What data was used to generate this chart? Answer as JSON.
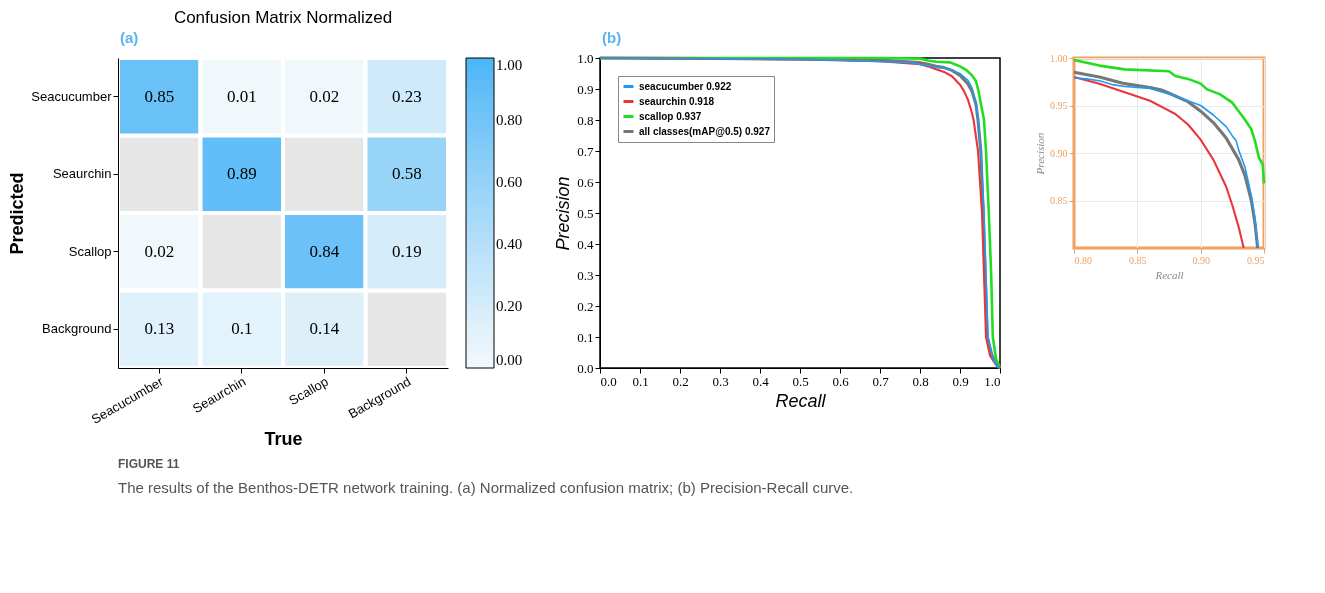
{
  "chart_data": [
    {
      "type": "heatmap",
      "title": "Confusion Matrix Normalized",
      "xlabel": "True",
      "ylabel": "Predicted",
      "categories": [
        "Seacucumber",
        "Seaurchin",
        "Scallop",
        "Background"
      ],
      "y_categories": [
        "Seacucumber",
        "Seaurchin",
        "Scallop",
        "Background"
      ],
      "cells": [
        [
          0.85,
          0.01,
          0.02,
          0.23
        ],
        [
          null,
          0.89,
          null,
          0.58
        ],
        [
          0.02,
          null,
          0.84,
          0.19
        ],
        [
          0.13,
          0.1,
          0.14,
          null
        ]
      ],
      "clim": [
        0,
        1
      ],
      "cticks": [
        {
          "value": 0,
          "label": "0.00"
        },
        {
          "value": 0.2,
          "label": "0.20"
        },
        {
          "value": 0.4,
          "label": "0.40"
        },
        {
          "value": 0.6,
          "label": "0.60"
        },
        {
          "value": 0.8,
          "label": "0.80"
        },
        {
          "value": 1,
          "label": "1.00"
        }
      ],
      "data_labels": true,
      "annotations": [
        "(a)",
        "FIGURE 11",
        "The results of the Benthos-DETR network training. (a) Normalized confusion matrix; (b) Precision-Recall curve."
      ]
    },
    {
      "type": "line",
      "xlabel": "Recall",
      "ylabel": "Precision",
      "legend": "top left",
      "grid": false,
      "xlim": [
        0,
        1
      ],
      "ylim": [
        0,
        1
      ],
      "xticks": [
        {
          "value": 0,
          "label": "0.0"
        },
        0.1,
        0.2,
        0.3,
        0.4,
        0.5,
        0.6,
        0.7,
        0.8,
        0.9,
        {
          "value": 1,
          "label": "1.0"
        }
      ],
      "yticks": [
        {
          "value": 0,
          "label": "0.0"
        },
        0.1,
        0.2,
        0.3,
        0.4,
        0.5,
        0.6,
        0.7,
        0.8,
        0.9,
        {
          "value": 1,
          "label": "1.0"
        }
      ],
      "annotations": [
        "(b)"
      ],
      "series": [
        {
          "name": "seacucumber 0.922",
          "color": "#1e9bf0",
          "x": [
            0,
            0.3,
            0.6,
            0.78,
            0.8,
            0.82,
            0.84,
            0.86,
            0.88,
            0.9,
            0.92,
            0.93,
            0.94,
            0.945,
            0.952,
            0.96,
            0.965,
            0.97,
            0.98,
            0.99,
            1.0
          ],
          "values": [
            1.0,
            0.998,
            0.993,
            0.985,
            0.979,
            0.976,
            0.97,
            0.968,
            0.96,
            0.95,
            0.928,
            0.903,
            0.855,
            0.8,
            0.7,
            0.5,
            0.3,
            0.1,
            0.04,
            0.01,
            0
          ]
        },
        {
          "name": "seaurchin 0.918",
          "color": "#e8363a",
          "x": [
            0,
            0.5,
            0.7,
            0.8,
            0.82,
            0.84,
            0.86,
            0.88,
            0.9,
            0.91,
            0.92,
            0.93,
            0.934,
            0.945,
            0.955,
            0.96,
            0.965,
            0.975,
            0.99,
            1.0
          ],
          "values": [
            1.0,
            0.995,
            0.99,
            0.98,
            0.973,
            0.964,
            0.955,
            0.941,
            0.914,
            0.893,
            0.865,
            0.822,
            0.8,
            0.7,
            0.5,
            0.3,
            0.1,
            0.04,
            0.01,
            0
          ]
        },
        {
          "name": "scallop 0.937",
          "color": "#22dd22",
          "x": [
            0,
            0.7,
            0.8,
            0.82,
            0.84,
            0.875,
            0.89,
            0.9,
            0.915,
            0.93,
            0.94,
            0.946,
            0.95,
            0.96,
            0.965,
            0.972,
            0.978,
            0.982,
            0.99,
            1.0
          ],
          "values": [
            1.0,
            1.0,
            0.998,
            0.992,
            0.988,
            0.986,
            0.978,
            0.973,
            0.962,
            0.944,
            0.925,
            0.895,
            0.868,
            0.8,
            0.7,
            0.5,
            0.3,
            0.1,
            0.03,
            0
          ]
        },
        {
          "name": "all classes(mAP@0.5) 0.927",
          "color": "#777777",
          "x": [
            0,
            0.5,
            0.7,
            0.8,
            0.82,
            0.84,
            0.86,
            0.88,
            0.9,
            0.92,
            0.93,
            0.94,
            0.945,
            0.952,
            0.958,
            0.963,
            0.968,
            0.98,
            0.995,
            1.0
          ],
          "values": [
            1.0,
            0.997,
            0.993,
            0.985,
            0.98,
            0.973,
            0.969,
            0.96,
            0.944,
            0.916,
            0.893,
            0.85,
            0.8,
            0.7,
            0.5,
            0.3,
            0.1,
            0.04,
            0.005,
            0
          ]
        }
      ]
    },
    {
      "type": "line",
      "xlabel": "Recall",
      "ylabel": "Precision",
      "grid": true,
      "xlim": [
        0.8,
        0.95
      ],
      "ylim": [
        0.8,
        1.0
      ],
      "xticks": [
        {
          "value": 0.8,
          "label": "0.80"
        },
        {
          "value": 0.85,
          "label": "0.85"
        },
        {
          "value": 0.9,
          "label": "0.90"
        },
        {
          "value": 0.95,
          "label": "0.95"
        }
      ],
      "yticks": [
        {
          "value": 0.85,
          "label": "0.85"
        },
        {
          "value": 0.9,
          "label": "0.90"
        },
        {
          "value": 0.95,
          "label": "0.95"
        },
        {
          "value": 1.0,
          "label": "1.00"
        }
      ],
      "series": [
        {
          "color": "#1e9bf0",
          "x": [
            0.8,
            0.81,
            0.82,
            0.83,
            0.84,
            0.86,
            0.87,
            0.88,
            0.89,
            0.9,
            0.91,
            0.92,
            0.925,
            0.928,
            0.93,
            0.935,
            0.94,
            0.943,
            0.945
          ],
          "values": [
            0.979,
            0.978,
            0.976,
            0.972,
            0.97,
            0.968,
            0.964,
            0.96,
            0.955,
            0.95,
            0.94,
            0.928,
            0.918,
            0.913,
            0.903,
            0.885,
            0.855,
            0.83,
            0.8
          ]
        },
        {
          "color": "#e8363a",
          "x": [
            0.8,
            0.82,
            0.84,
            0.86,
            0.87,
            0.88,
            0.89,
            0.9,
            0.91,
            0.92,
            0.925,
            0.93,
            0.934
          ],
          "values": [
            0.98,
            0.973,
            0.964,
            0.955,
            0.948,
            0.941,
            0.93,
            0.914,
            0.893,
            0.865,
            0.845,
            0.822,
            0.8
          ]
        },
        {
          "color": "#22dd22",
          "x": [
            0.8,
            0.81,
            0.82,
            0.84,
            0.875,
            0.88,
            0.89,
            0.9,
            0.905,
            0.915,
            0.925,
            0.93,
            0.935,
            0.94,
            0.943,
            0.946,
            0.949,
            0.95
          ],
          "values": [
            0.998,
            0.995,
            0.992,
            0.988,
            0.986,
            0.981,
            0.978,
            0.973,
            0.967,
            0.962,
            0.953,
            0.944,
            0.935,
            0.925,
            0.912,
            0.895,
            0.888,
            0.868
          ]
        },
        {
          "color": "#777777",
          "x": [
            0.8,
            0.82,
            0.84,
            0.86,
            0.87,
            0.88,
            0.89,
            0.9,
            0.91,
            0.92,
            0.93,
            0.935,
            0.94,
            0.943,
            0.945
          ],
          "values": [
            0.985,
            0.98,
            0.973,
            0.969,
            0.966,
            0.96,
            0.954,
            0.944,
            0.932,
            0.916,
            0.893,
            0.876,
            0.85,
            0.825,
            0.8
          ]
        }
      ]
    }
  ]
}
